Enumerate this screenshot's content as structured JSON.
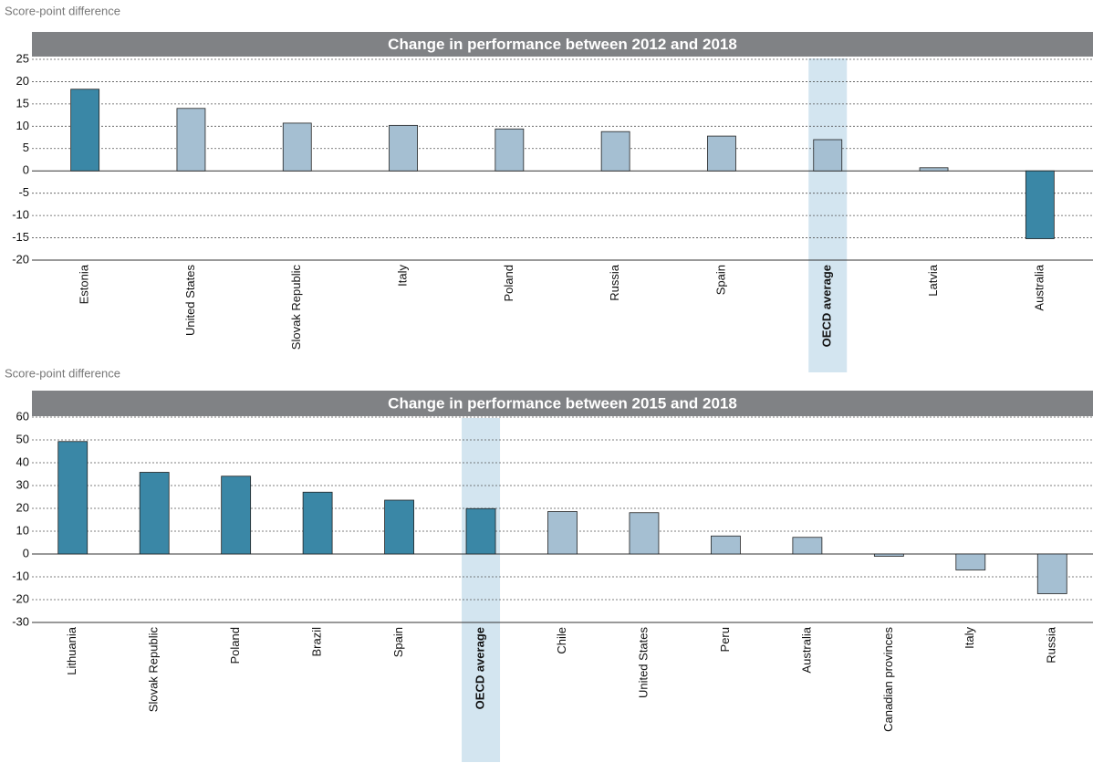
{
  "chart_data": [
    {
      "type": "bar",
      "title": "Change in performance between 2012 and 2018",
      "ylabel": "Score-point difference",
      "categories": [
        "Estonia",
        "United States",
        "Slovak Republic",
        "Italy",
        "Poland",
        "Russia",
        "Spain",
        "OECD average",
        "Latvia",
        "Australia"
      ],
      "values": [
        18.3,
        14,
        10.7,
        10.2,
        9.4,
        8.8,
        7.8,
        7,
        0.7,
        -15.2
      ],
      "colors": [
        "#3a87a6",
        "#a5bfd2",
        "#a5bfd2",
        "#a5bfd2",
        "#a5bfd2",
        "#a5bfd2",
        "#a5bfd2",
        "#a5bfd2",
        "#a5bfd2",
        "#3a87a6"
      ],
      "highlight": 7,
      "highlight_color": "#d3e5f0",
      "ylim": [
        -20,
        25
      ],
      "yticks": [
        -20,
        -15,
        -10,
        -5,
        0,
        5,
        10,
        15,
        20,
        25
      ],
      "grid": true
    },
    {
      "type": "bar",
      "title": "Change in performance between 2015 and 2018",
      "ylabel": "Score-point difference",
      "categories": [
        "Lithuania",
        "Slovak Republic",
        "Poland",
        "Brazil",
        "Spain",
        "OECD average",
        "Chile",
        "United States",
        "Peru",
        "Australia",
        "Canadian provinces",
        "Italy",
        "Russia"
      ],
      "values": [
        49.3,
        35.8,
        34.1,
        27.1,
        23.6,
        19.9,
        18.6,
        18.1,
        7.9,
        7.3,
        -1,
        -7,
        -17.4
      ],
      "colors": [
        "#3a87a6",
        "#3a87a6",
        "#3a87a6",
        "#3a87a6",
        "#3a87a6",
        "#3a87a6",
        "#a5bfd2",
        "#a5bfd2",
        "#a5bfd2",
        "#a5bfd2",
        "#a5bfd2",
        "#a5bfd2",
        "#a5bfd2"
      ],
      "highlight": 5,
      "highlight_color": "#d3e5f0",
      "ylim": [
        -30,
        60
      ],
      "yticks": [
        -30,
        -20,
        -10,
        0,
        10,
        20,
        30,
        40,
        50,
        60
      ],
      "grid": true
    }
  ]
}
